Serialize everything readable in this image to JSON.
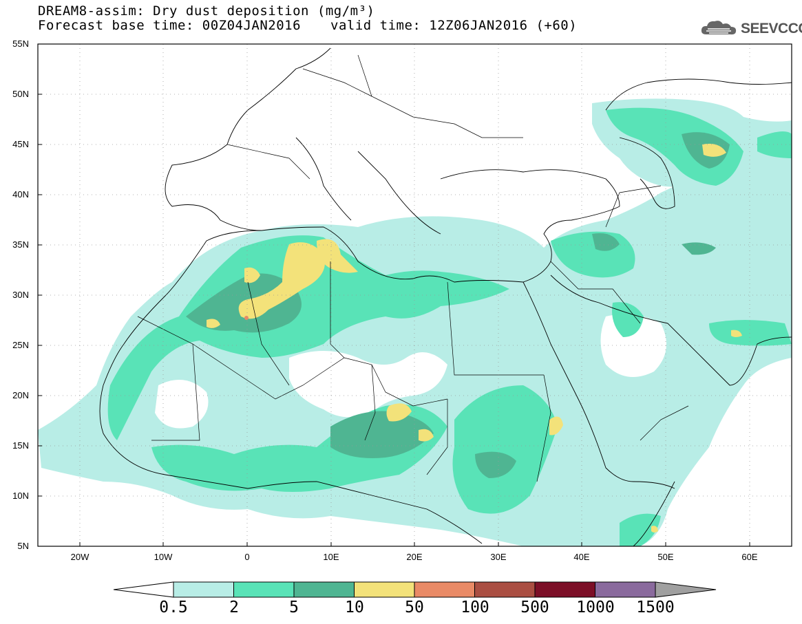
{
  "header": {
    "line1": "DREAM8-assim: Dry dust deposition (mg/m³)",
    "line2": "Forecast base time: 00Z04JAN2016",
    "valid": "valid time: 12Z06JAN2016 (+60)"
  },
  "logo": {
    "text": "SEEVCCC",
    "icon": "cloud-icon"
  },
  "axes": {
    "lat_labels": [
      "55N",
      "50N",
      "45N",
      "40N",
      "35N",
      "30N",
      "25N",
      "20N",
      "15N",
      "10N",
      "5N"
    ],
    "lon_labels": [
      "20W",
      "10W",
      "0",
      "10E",
      "20E",
      "30E",
      "40E",
      "50E",
      "60E"
    ],
    "lat_range": [
      5,
      55
    ],
    "lon_range": [
      -25,
      65
    ],
    "grid": true
  },
  "colorbar": {
    "labels": [
      "0.5",
      "2",
      "5",
      "10",
      "50",
      "100",
      "500",
      "1000",
      "1500"
    ],
    "colors": [
      "#b8ede6",
      "#59e3b7",
      "#4fb592",
      "#f3e27a",
      "#e98a66",
      "#aa4e42",
      "#7c0f27",
      "#8a6a9d"
    ],
    "under_color": "#ffffff",
    "over_color": "#a0a0a0"
  }
}
